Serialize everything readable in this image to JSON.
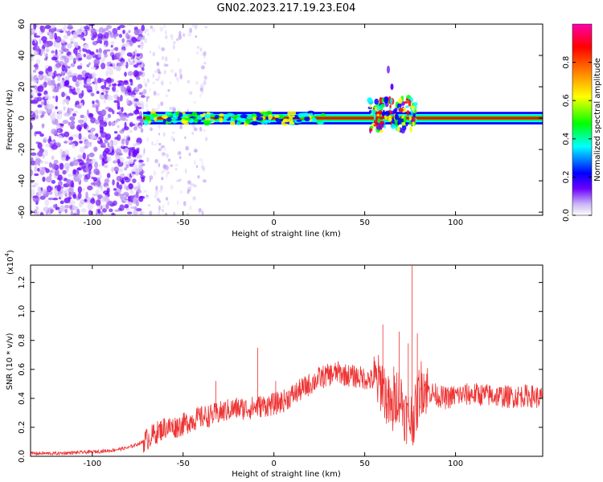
{
  "title": "GN02.2023.217.19.23.E04",
  "colors": {
    "snr_line": "#ee3333",
    "colormap": [
      "#ffffff",
      "#c9b3f5",
      "#6a00ff",
      "#0000ff",
      "#00ffff",
      "#00ff00",
      "#ffff00",
      "#ff8000",
      "#ff0000",
      "#ff00aa"
    ]
  },
  "chart_data": [
    {
      "type": "heatmap",
      "title": "GN02.2023.217.19.23.E04",
      "xlabel": "Height of straight line (km)",
      "ylabel": "Frequency (Hz)",
      "xlim": [
        -134,
        148
      ],
      "ylim": [
        -62,
        60
      ],
      "xticks": [
        -100,
        -50,
        0,
        50,
        100
      ],
      "xtick_labels": [
        "-100",
        "-50",
        "0",
        "50",
        "100"
      ],
      "yticks": [
        60,
        40,
        20,
        0,
        -20,
        -40,
        -60
      ],
      "ytick_labels": [
        "60",
        "40",
        "20",
        "0",
        "-20",
        "-40",
        "-60"
      ],
      "colorbar": {
        "label": "Normalized spectral amplitude",
        "range": [
          0,
          1
        ],
        "ticks": [
          0.0,
          0.2,
          0.4,
          0.6,
          0.8
        ],
        "tick_labels": [
          "0.0",
          "0.2",
          "0.4",
          "0.6",
          "0.8"
        ],
        "position": "right"
      },
      "features": {
        "noise_region_x": [
          -134,
          -72
        ],
        "sparse_noise_x": [
          -72,
          -37
        ],
        "main_band_freq": 0,
        "main_band_x": [
          -72,
          148
        ],
        "disturbance_x": [
          52,
          78
        ],
        "disturbance_freq_range": [
          -14,
          32
        ]
      }
    },
    {
      "type": "line",
      "xlabel": "Height of straight line (km)",
      "ylabel": "SNR (10 * v/v)",
      "yscale_label": "(x10",
      "yscale_exponent": "4",
      "xlim": [
        -134,
        148
      ],
      "ylim": [
        0,
        1.32
      ],
      "xticks": [
        -100,
        -50,
        0,
        50,
        100
      ],
      "xtick_labels": [
        "-100",
        "-50",
        "0",
        "50",
        "100"
      ],
      "yticks": [
        0.0,
        0.2,
        0.4,
        0.6,
        0.8,
        1.0,
        1.2
      ],
      "ytick_labels": [
        "0.0",
        "0.2",
        "0.4",
        "0.6",
        "0.8",
        "1.0",
        "1.2"
      ],
      "series": [
        {
          "x": [
            -134,
            -120,
            -100,
            -90,
            -80,
            -72,
            -65,
            -60,
            -55,
            -50,
            -45,
            -40,
            -35,
            -30,
            -25,
            -20,
            -15,
            -10,
            -5,
            0,
            5,
            10,
            15,
            20,
            25,
            30,
            35,
            40,
            45,
            50,
            55,
            60,
            62,
            65,
            68,
            70,
            72,
            75,
            78,
            80,
            82,
            85,
            90,
            95,
            100,
            110,
            120,
            130,
            140,
            148
          ],
          "y": [
            0.02,
            0.02,
            0.03,
            0.04,
            0.06,
            0.1,
            0.16,
            0.2,
            0.2,
            0.22,
            0.25,
            0.27,
            0.28,
            0.3,
            0.32,
            0.33,
            0.33,
            0.34,
            0.35,
            0.36,
            0.38,
            0.42,
            0.46,
            0.5,
            0.54,
            0.56,
            0.58,
            0.56,
            0.55,
            0.54,
            0.52,
            0.5,
            0.4,
            0.3,
            0.45,
            0.4,
            0.3,
            0.25,
            0.3,
            0.45,
            0.5,
            0.45,
            0.42,
            0.4,
            0.42,
            0.43,
            0.42,
            0.41,
            0.42,
            0.4
          ]
        }
      ],
      "spikes": [
        {
          "x": -32,
          "y": 0.52
        },
        {
          "x": -9,
          "y": 0.75
        },
        {
          "x": 1,
          "y": 0.52
        },
        {
          "x": 60,
          "y": 0.91
        },
        {
          "x": 66,
          "y": 0.62
        },
        {
          "x": 69,
          "y": 0.86
        },
        {
          "x": 74,
          "y": 0.78
        },
        {
          "x": 76,
          "y": 1.32
        },
        {
          "x": 79,
          "y": 0.85
        },
        {
          "x": 83,
          "y": 0.5
        }
      ],
      "noise_amplitude": 0.05
    }
  ]
}
